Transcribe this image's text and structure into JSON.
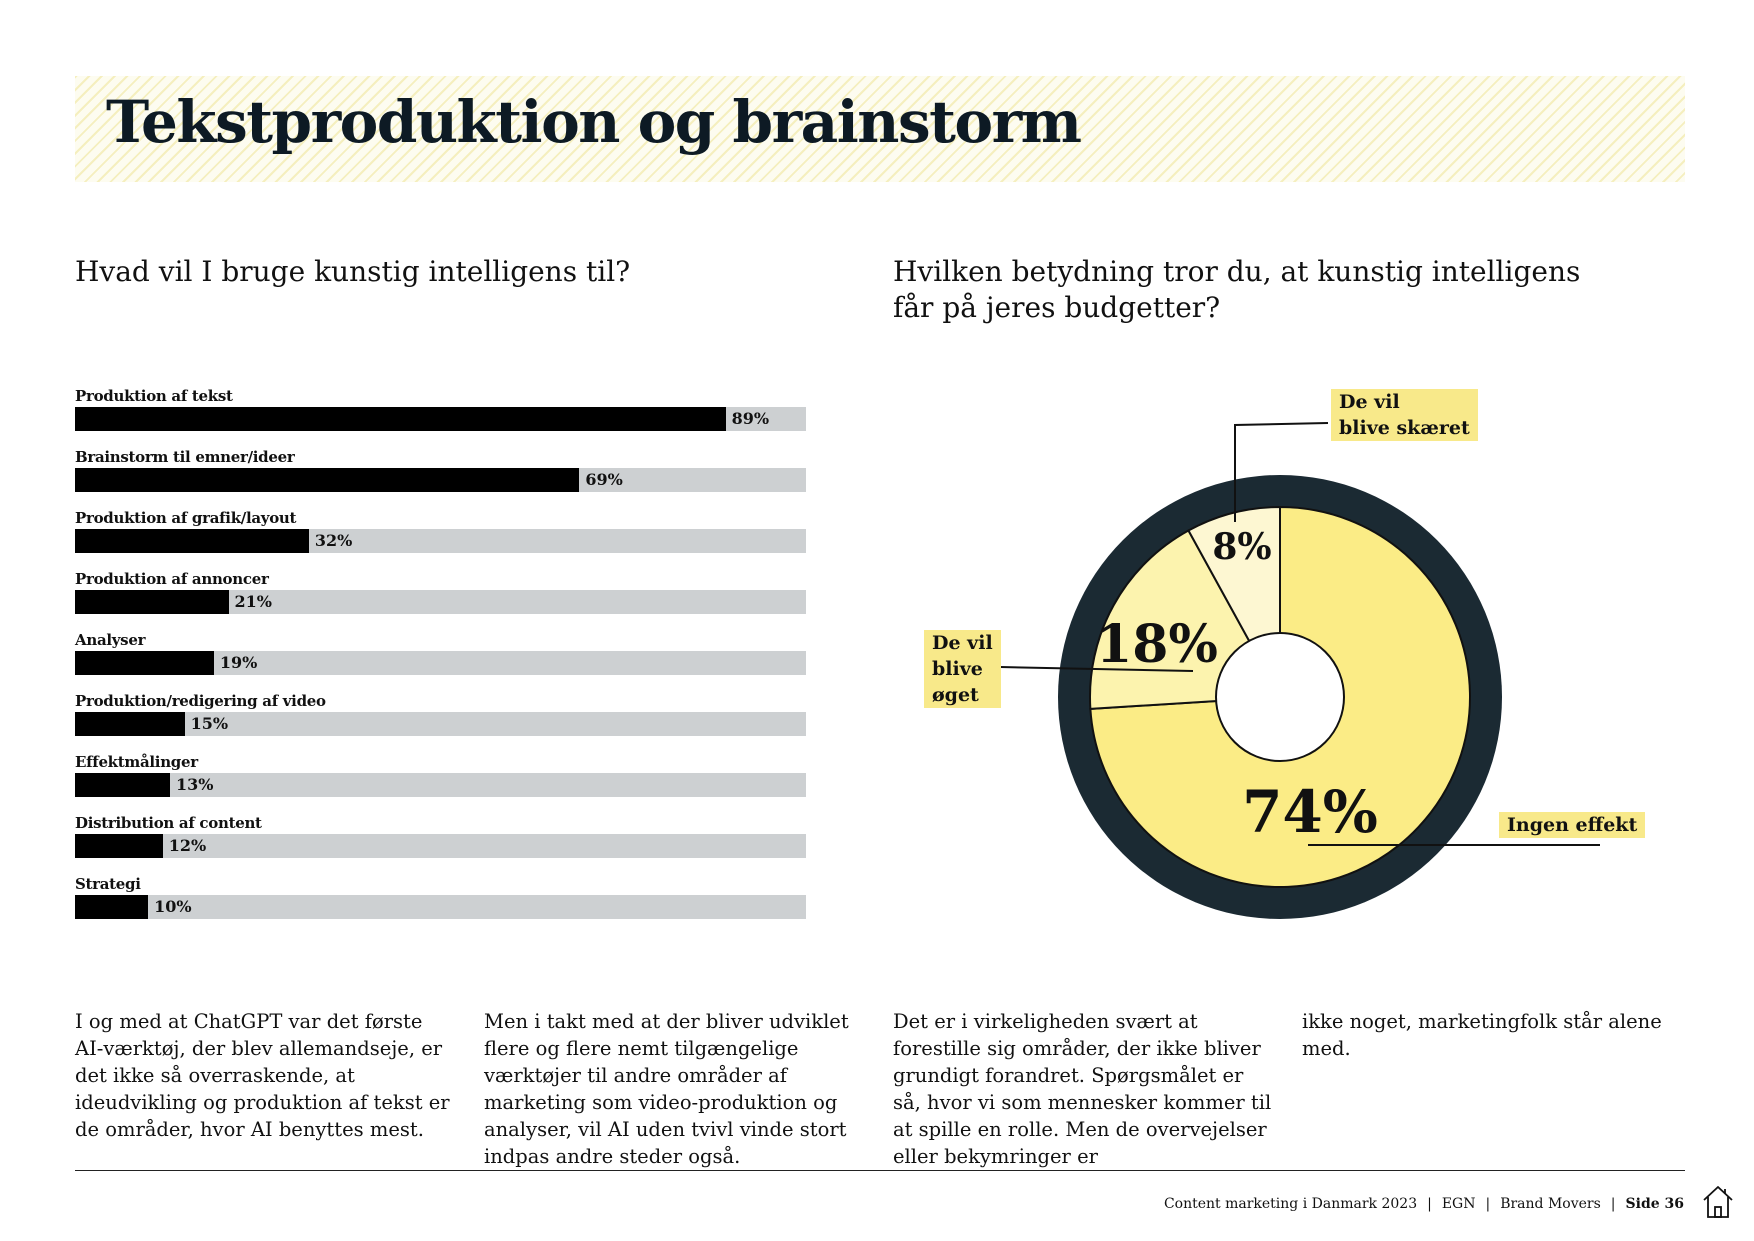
{
  "title": "Tekstproduktion og brainstorm",
  "bar_chart": {
    "question": "Hvad vil I bruge kunstig intelligens til?",
    "items": [
      {
        "label": "Produktion af tekst",
        "value": 89,
        "display": "89%"
      },
      {
        "label": "Brainstorm til emner/ideer",
        "value": 69,
        "display": "69%"
      },
      {
        "label": "Produktion af grafik/layout",
        "value": 32,
        "display": "32%"
      },
      {
        "label": "Produktion af annoncer",
        "value": 21,
        "display": "21%"
      },
      {
        "label": "Analyser",
        "value": 19,
        "display": "19%"
      },
      {
        "label": "Produktion/redigering af video",
        "value": 15,
        "display": "15%"
      },
      {
        "label": "Effektmålinger",
        "value": 13,
        "display": "13%"
      },
      {
        "label": "Distribution af content",
        "value": 12,
        "display": "12%"
      },
      {
        "label": "Strategi",
        "value": 10,
        "display": "10%"
      }
    ]
  },
  "donut": {
    "question_line1": "Hvilken betydning tror du, at kunstig intelligens",
    "question_line2": "får på jeres budgetter?",
    "labels": {
      "cut_line1": "De vil",
      "cut_line2": "blive skæret",
      "increase_line1": "De vil",
      "increase_line2": "blive",
      "increase_line3": "øget",
      "none": "Ingen effekt"
    }
  },
  "chart_data": [
    {
      "type": "bar",
      "title": "Hvad vil I bruge kunstig intelligens til?",
      "categories": [
        "Produktion af tekst",
        "Brainstorm til emner/ideer",
        "Produktion af grafik/layout",
        "Produktion af annoncer",
        "Analyser",
        "Produktion/redigering af video",
        "Effektmålinger",
        "Distribution af content",
        "Strategi"
      ],
      "values": [
        89,
        69,
        32,
        21,
        19,
        15,
        13,
        12,
        10
      ],
      "unit": "%",
      "ylim": [
        0,
        100
      ]
    },
    {
      "type": "pie",
      "title": "Hvilken betydning tror du, at kunstig intelligens får på jeres budgetter?",
      "slices": [
        {
          "label": "Ingen effekt",
          "value": 74,
          "display": "74%",
          "color": "#fbec86"
        },
        {
          "label": "De vil blive øget",
          "value": 18,
          "display": "18%",
          "color": "#fcf3ae"
        },
        {
          "label": "De vil blive skæret",
          "value": 8,
          "display": "8%",
          "color": "#fdf7d2"
        }
      ]
    }
  ],
  "paragraphs": [
    "I og med at ChatGPT var det første AI-værktøj, der blev allemandseje, er det ikke så overraskende, at ideudvikling og produktion af tekst er de områder, hvor AI benyttes mest.",
    "Men i takt med at der bliver udviklet flere og flere nemt tilgængelige værktøjer til andre områder af marketing som video-produktion og analyser, vil AI uden tvivl vinde stort indpas andre steder også.",
    "Det er i virkeligheden svært at forestille sig områder, der ikke bliver grundigt forandret. Spørgsmålet er så, hvor vi som mennesker kommer til at spille en rolle. Men de overvejelser eller bekymringer er",
    "ikke noget, marketingfolk står alene med."
  ],
  "footer": {
    "publication": "Content marketing i Danmark 2023",
    "org1": "EGN",
    "org2": "Brand Movers",
    "page": "Side 36"
  },
  "colors": {
    "dark": "#1b2a33",
    "yellow": "#fbec86",
    "tag": "#f8e98a",
    "track": "#cdd0d2"
  },
  "icons": {
    "home": "home-icon"
  }
}
